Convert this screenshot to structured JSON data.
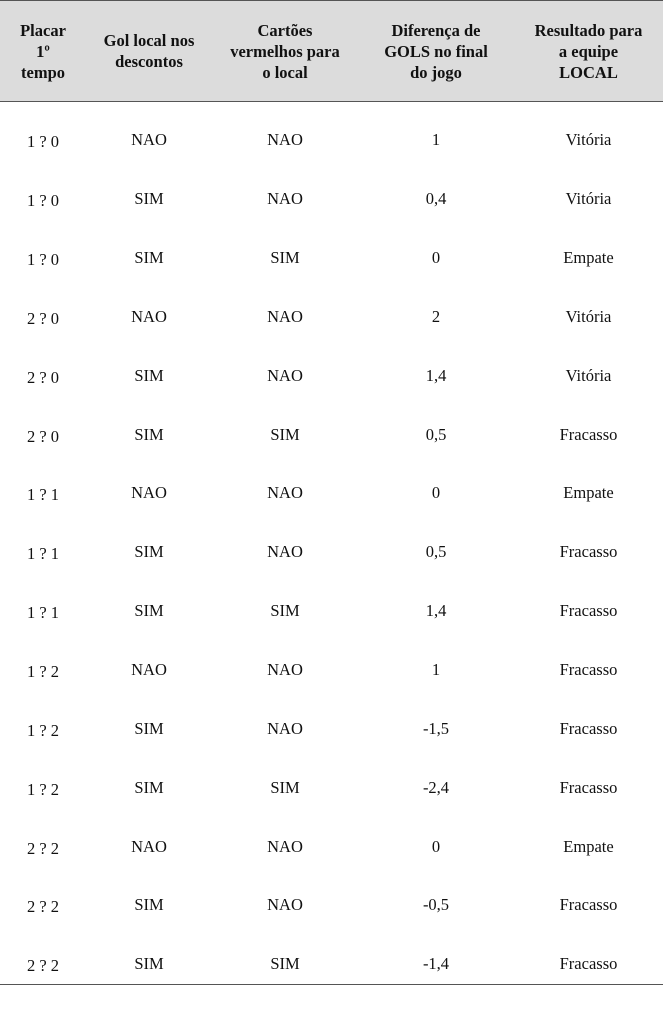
{
  "table": {
    "headers": [
      "Placar\n1º\ntempo",
      "Gol local nos\ndescontos",
      "Cartões\nvermelhos para\no local",
      "Diferença de\nGOLS no final\ndo jogo",
      "Resultado para\na equipe\nLOCAL"
    ],
    "rows": [
      [
        "1 ? 0",
        "NAO",
        "NAO",
        "1",
        "Vitória"
      ],
      [
        "1 ? 0",
        "SIM",
        "NAO",
        "0,4",
        "Vitória"
      ],
      [
        "1 ? 0",
        "SIM",
        "SIM",
        "0",
        "Empate"
      ],
      [
        "2 ? 0",
        "NAO",
        "NAO",
        "2",
        "Vitória"
      ],
      [
        "2 ? 0",
        "SIM",
        "NAO",
        "1,4",
        "Vitória"
      ],
      [
        "2 ? 0",
        "SIM",
        "SIM",
        "0,5",
        "Fracasso"
      ],
      [
        "1 ? 1",
        "NAO",
        "NAO",
        "0",
        "Empate"
      ],
      [
        "1 ? 1",
        "SIM",
        "NAO",
        "0,5",
        "Fracasso"
      ],
      [
        "1 ? 1",
        "SIM",
        "SIM",
        "1,4",
        "Fracasso"
      ],
      [
        "1 ? 2",
        "NAO",
        "NAO",
        "1",
        "Fracasso"
      ],
      [
        "1 ? 2",
        "SIM",
        "NAO",
        "-1,5",
        "Fracasso"
      ],
      [
        "1 ? 2",
        "SIM",
        "SIM",
        "-2,4",
        "Fracasso"
      ],
      [
        "2 ? 2",
        "NAO",
        "NAO",
        "0",
        "Empate"
      ],
      [
        "2 ? 2",
        "SIM",
        "NAO",
        "-0,5",
        "Fracasso"
      ],
      [
        "2 ? 2",
        "SIM",
        "SIM",
        "-1,4",
        "Fracasso"
      ]
    ]
  }
}
